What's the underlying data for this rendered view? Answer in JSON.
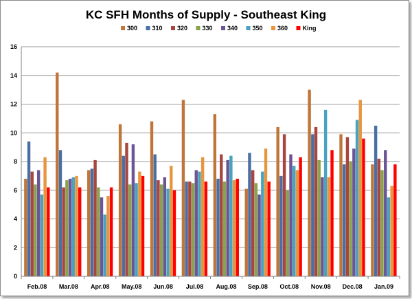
{
  "chart_data": {
    "type": "bar",
    "title": "KC SFH Months of Supply - Southeast King",
    "xlabel": "",
    "ylabel": "",
    "ylim": [
      0,
      16
    ],
    "yticks": [
      0,
      2,
      4,
      6,
      8,
      10,
      12,
      14,
      16
    ],
    "grid": "horizontal",
    "legend_position": "top",
    "categories": [
      "Feb.08",
      "Mar.08",
      "Apr.08",
      "May.08",
      "Jun.08",
      "Jul.08",
      "Aug.08",
      "Sep.08",
      "Oct.08",
      "Nov.08",
      "Dec.08",
      "Jan.09"
    ],
    "series": [
      {
        "name": "300",
        "color": "#C0763A",
        "values": [
          6.8,
          14.2,
          7.4,
          10.6,
          10.8,
          12.3,
          11.3,
          6.1,
          10.4,
          13.0,
          9.9,
          7.8
        ]
      },
      {
        "name": "310",
        "color": "#4A6FA5",
        "values": [
          9.4,
          8.8,
          7.5,
          8.4,
          8.5,
          6.6,
          6.8,
          8.6,
          7.0,
          9.9,
          7.8,
          10.5
        ]
      },
      {
        "name": "320",
        "color": "#A8453F",
        "values": [
          7.3,
          6.2,
          8.1,
          9.3,
          6.7,
          6.6,
          8.5,
          7.4,
          9.9,
          10.4,
          9.7,
          8.2
        ]
      },
      {
        "name": "330",
        "color": "#8AA14E",
        "values": [
          6.4,
          6.7,
          6.2,
          6.4,
          6.4,
          6.5,
          6.6,
          6.5,
          6.0,
          8.1,
          8.0,
          7.4
        ]
      },
      {
        "name": "340",
        "color": "#6B5596",
        "values": [
          7.4,
          6.8,
          5.5,
          9.2,
          6.9,
          7.4,
          8.1,
          5.7,
          8.5,
          6.9,
          8.9,
          8.8
        ]
      },
      {
        "name": "350",
        "color": "#4AA3BE",
        "values": [
          5.7,
          6.9,
          4.3,
          6.5,
          6.1,
          7.3,
          8.4,
          7.3,
          7.7,
          11.6,
          10.9,
          5.5
        ]
      },
      {
        "name": "360",
        "color": "#E8963E",
        "values": [
          8.3,
          7.0,
          5.6,
          7.3,
          7.7,
          8.3,
          6.7,
          8.9,
          7.4,
          6.9,
          12.3,
          6.3
        ]
      },
      {
        "name": "King",
        "color": "#FF0000",
        "values": [
          6.2,
          6.2,
          6.2,
          7.0,
          6.0,
          6.6,
          6.8,
          6.6,
          8.3,
          8.8,
          9.6,
          7.8
        ]
      }
    ]
  }
}
